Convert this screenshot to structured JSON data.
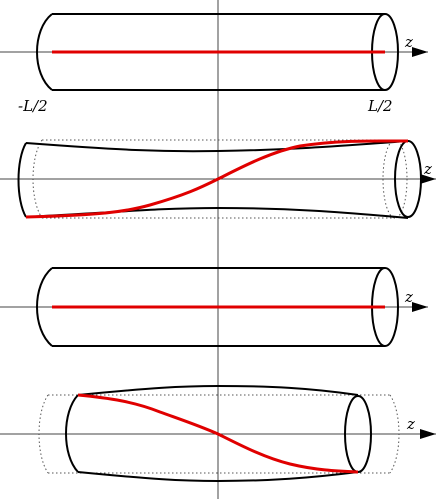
{
  "labels": {
    "z_axis": "z",
    "left_end": "-L/2",
    "right_end": "L/2"
  },
  "colors": {
    "fiber": "#e00000",
    "outline": "#000000",
    "axis": "#444444",
    "background": "#ffffff"
  },
  "panels": [
    {
      "state": "straight cylinder",
      "fiber": "straight"
    },
    {
      "state": "twisted, narrowed waist",
      "fiber": "helical"
    },
    {
      "state": "straight cylinder",
      "fiber": "straight"
    },
    {
      "state": "twisted, bulged middle",
      "fiber": "helical"
    }
  ]
}
